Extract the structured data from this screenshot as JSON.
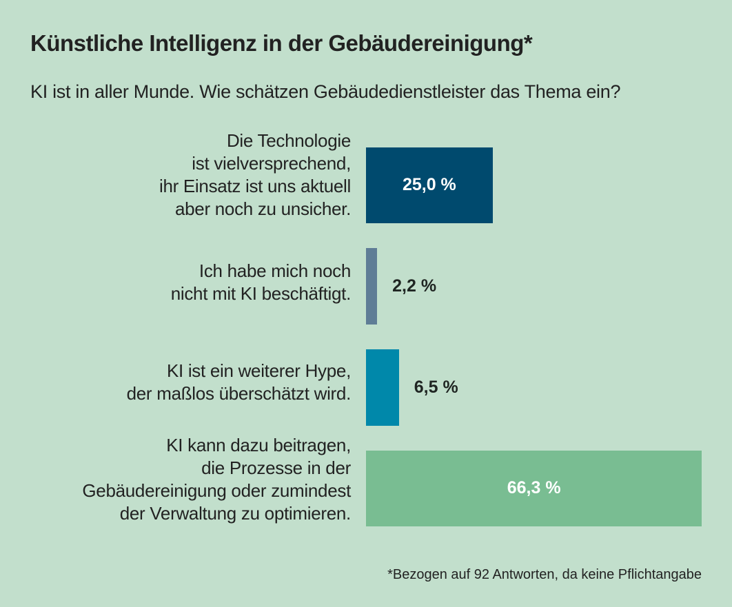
{
  "chart_data": {
    "type": "bar",
    "orientation": "horizontal",
    "title": "Künstliche Intelligenz in der Gebäudereinigung*",
    "subtitle": "KI ist in aller Munde. Wie schätzen Gebäudedienstleister das Thema ein?",
    "xlabel": "",
    "ylabel": "",
    "xlim": [
      0,
      100
    ],
    "grid": false,
    "unit": "%",
    "categories": [
      "Die Technologie\nist vielversprechend,\nihr Einsatz ist uns aktuell\naber noch zu unsicher.",
      "Ich habe mich noch\nnicht mit KI beschäftigt.",
      "KI ist ein weiterer Hype,\nder maßlos überschätzt wird.",
      "KI kann dazu beitragen,\ndie Prozesse in der\nGebäudereinigung oder zumindest\nder Verwaltung zu optimieren."
    ],
    "values": [
      25.0,
      2.2,
      6.5,
      66.3
    ],
    "value_labels": [
      "25,0 %",
      "2,2 %",
      "6,5 %",
      "66,3 %"
    ],
    "colors": [
      "#004a6e",
      "#5f7d96",
      "#0088aa",
      "#79bd92"
    ],
    "label_inside": [
      true,
      false,
      false,
      true
    ],
    "footnote": "*Bezogen auf 92 Antworten, da keine Pflichtangabe"
  }
}
